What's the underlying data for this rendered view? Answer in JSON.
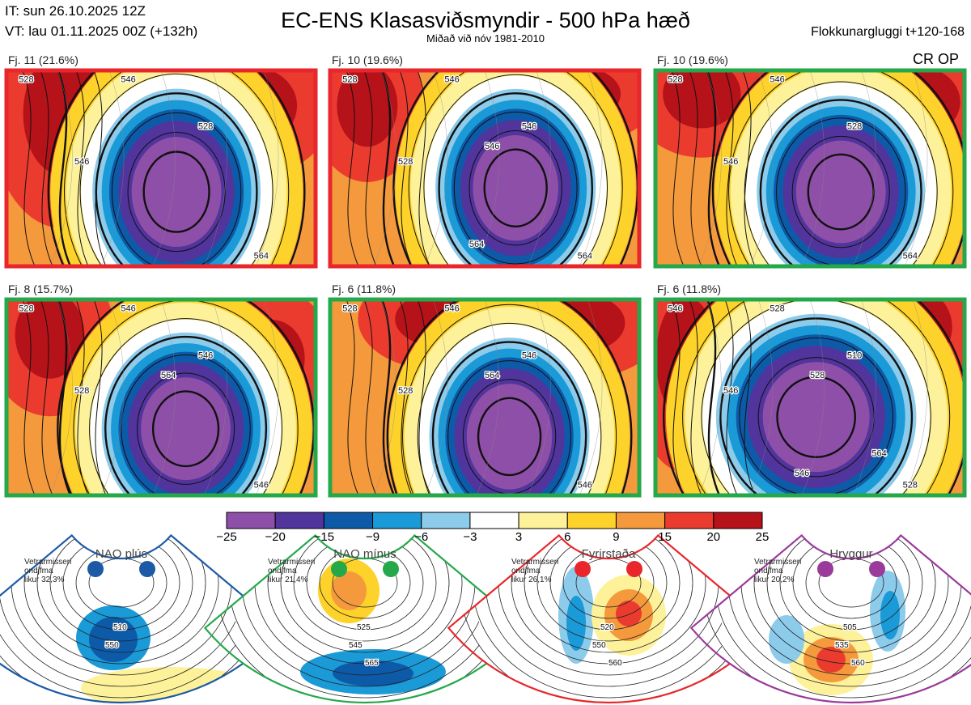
{
  "header": {
    "it": "IT: sun 26.10.2025 12Z",
    "vt": "VT: lau 01.11.2025 00Z  (+132h)",
    "title": "EC-ENS Klasasviðsmyndir - 500 hPa hæð",
    "subtitle": "Miðað við nóv 1981-2010",
    "window": "Flokkunargluggi t+120-168"
  },
  "colors": {
    "red_frame": "#e8262b",
    "green_frame": "#24a84a",
    "nao_plus": "#1c5aa6",
    "nao_minus": "#24a84a",
    "blocking": "#e8262b",
    "ridge": "#9a3a9a"
  },
  "panels": [
    {
      "label": "Fj. 11 (21.6%)",
      "frame": "red",
      "contours": [
        "528",
        "546",
        "528",
        "546",
        "564"
      ],
      "tag": ""
    },
    {
      "label": "Fj. 10 (19.6%)",
      "frame": "red",
      "contours": [
        "528",
        "546",
        "546",
        "528",
        "564",
        "546",
        "564"
      ],
      "tag": ""
    },
    {
      "label": "Fj. 10 (19.6%)",
      "frame": "green",
      "contours": [
        "528",
        "546",
        "528",
        "546",
        "564"
      ],
      "tag": "CR OP"
    },
    {
      "label": "Fj. 8 (15.7%)",
      "frame": "green",
      "contours": [
        "528",
        "546",
        "546",
        "528",
        "546",
        "564"
      ],
      "tag": ""
    },
    {
      "label": "Fj. 6 (11.8%)",
      "frame": "green",
      "contours": [
        "528",
        "546",
        "546",
        "528",
        "546",
        "564"
      ],
      "tag": ""
    },
    {
      "label": "Fj. 6 (11.8%)",
      "frame": "green",
      "contours": [
        "546",
        "528",
        "510",
        "546",
        "528",
        "528",
        "546",
        "564"
      ],
      "tag": ""
    }
  ],
  "chart_data": {
    "type": "heatmap",
    "title": "EC-ENS Klasasviðsmyndir - 500 hPa hæð",
    "colorbar": {
      "ticks": [
        "−25",
        "−20",
        "−15",
        "−9",
        "−6",
        "−3",
        "3",
        "6",
        "9",
        "15",
        "20",
        "25"
      ],
      "bins": [
        {
          "from": -25,
          "to": -20,
          "color": "#8e4fa8"
        },
        {
          "from": -20,
          "to": -15,
          "color": "#51349c"
        },
        {
          "from": -15,
          "to": -9,
          "color": "#0d5ba8"
        },
        {
          "from": -9,
          "to": -6,
          "color": "#1b9ad8"
        },
        {
          "from": -6,
          "to": -3,
          "color": "#8dcbeb"
        },
        {
          "from": -3,
          "to": 3,
          "color": "#ffffff"
        },
        {
          "from": 3,
          "to": 6,
          "color": "#fdf29a"
        },
        {
          "from": 6,
          "to": 9,
          "color": "#fdd22a"
        },
        {
          "from": 9,
          "to": 15,
          "color": "#f59a3c"
        },
        {
          "from": 15,
          "to": 20,
          "color": "#ea3b2e"
        },
        {
          "from": 20,
          "to": 25,
          "color": "#b51219"
        }
      ]
    }
  },
  "regimes": [
    {
      "name": "NAO plús",
      "meta": "Vetrarmisseri\nondjfma\nlikur 32,3%",
      "color_key": "nao_plus",
      "contours": [
        "510",
        "550"
      ]
    },
    {
      "name": "NAO mínus",
      "meta": "Vetrarmisseri\nondjfma\nlikur 21,4%",
      "color_key": "nao_minus",
      "contours": [
        "525",
        "545",
        "565"
      ]
    },
    {
      "name": "Fyrirstaða",
      "meta": "Vetrarmisseri\nondjfma\nlikur 26,1%",
      "color_key": "blocking",
      "contours": [
        "520",
        "550",
        "560"
      ]
    },
    {
      "name": "Hryggur",
      "meta": "Vetrarmisseri\nondjfma\nlikur 20,2%",
      "color_key": "ridge",
      "contours": [
        "505",
        "535",
        "560"
      ]
    }
  ]
}
